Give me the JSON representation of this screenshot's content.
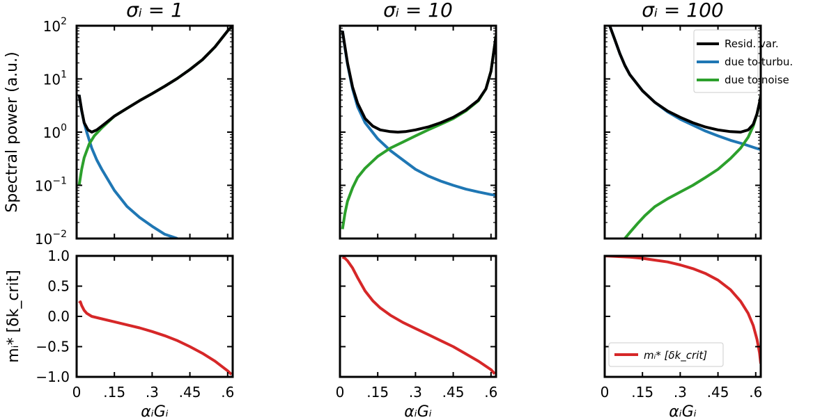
{
  "chart_data": {
    "type": "line",
    "layout": "2 rows x 3 columns, shared x axis",
    "x_range": [
      0,
      0.62
    ],
    "x_ticks": [
      0,
      0.15,
      0.3,
      0.45,
      0.6
    ],
    "x_tick_labels": [
      "0",
      ".15",
      ".3",
      ".45",
      ".6"
    ],
    "xlabel": "αᵢGᵢ",
    "top_row": {
      "ylabel": "Spectral power (a.u.)",
      "yscale": "log",
      "ylim": [
        0.01,
        100
      ],
      "y_ticks": [
        0.01,
        0.1,
        1,
        10,
        100
      ],
      "y_tick_labels": [
        {
          "base": "10",
          "exp": "−2"
        },
        {
          "base": "10",
          "exp": "−1"
        },
        {
          "base": "10",
          "exp": "0"
        },
        {
          "base": "10",
          "exp": "1"
        },
        {
          "base": "10",
          "exp": "2"
        }
      ]
    },
    "bottom_row": {
      "ylabel": "mᵢ* [δk_crit]",
      "ylim": [
        -1.0,
        1.0
      ],
      "y_ticks": [
        -1.0,
        -0.5,
        0.0,
        0.5,
        1.0
      ],
      "y_tick_labels": [
        "−1.0",
        "−0.5",
        "0.0",
        "0.5",
        "1.0"
      ]
    },
    "legend_top": {
      "placement": "top-right of third column top panel",
      "entries": [
        "Resid. var.",
        "due to turbu.",
        "due to noise"
      ]
    },
    "legend_bottom": {
      "placement": "lower-left of third column bottom panel",
      "entries": [
        "mᵢ* [δk_crit]"
      ]
    },
    "colors": {
      "resid": "#000000",
      "turbu": "#1f77b4",
      "noise": "#2ca02c",
      "m": "#d62728"
    },
    "panels": [
      {
        "title": "σᵢ = 1",
        "top": {
          "series": [
            {
              "name": "Resid. var.",
              "x": [
                0.01,
                0.02,
                0.03,
                0.045,
                0.06,
                0.08,
                0.1,
                0.15,
                0.2,
                0.25,
                0.3,
                0.35,
                0.4,
                0.45,
                0.5,
                0.55,
                0.6,
                0.62
              ],
              "y": [
                5.0,
                2.6,
                1.5,
                1.1,
                1.0,
                1.1,
                1.3,
                2.0,
                2.8,
                3.9,
                5.3,
                7.3,
                10.2,
                15,
                23,
                40,
                80,
                100
              ]
            },
            {
              "name": "due to turbu.",
              "x": [
                0.01,
                0.02,
                0.03,
                0.04,
                0.06,
                0.08,
                0.1,
                0.15,
                0.2,
                0.25,
                0.3,
                0.35,
                0.4
              ],
              "y": [
                5.0,
                2.5,
                1.5,
                1.0,
                0.5,
                0.3,
                0.2,
                0.08,
                0.04,
                0.025,
                0.017,
                0.012,
                0.01
              ]
            },
            {
              "name": "due to noise",
              "x": [
                0.01,
                0.02,
                0.03,
                0.05,
                0.07,
                0.1,
                0.15,
                0.2,
                0.25,
                0.3,
                0.35,
                0.4,
                0.45,
                0.5,
                0.55,
                0.6,
                0.62
              ],
              "y": [
                0.1,
                0.2,
                0.33,
                0.6,
                0.85,
                1.2,
                2.0,
                2.8,
                3.9,
                5.3,
                7.3,
                10.2,
                15,
                23,
                40,
                80,
                100
              ]
            }
          ]
        },
        "bottom": {
          "series": [
            {
              "name": "mᵢ* [δk_crit]",
              "x": [
                0.01,
                0.015,
                0.02,
                0.03,
                0.04,
                0.06,
                0.1,
                0.15,
                0.2,
                0.25,
                0.3,
                0.35,
                0.4,
                0.45,
                0.5,
                0.55,
                0.6,
                0.615
              ],
              "y": [
                0.22,
                0.24,
                0.18,
                0.1,
                0.05,
                0.0,
                -0.04,
                -0.09,
                -0.14,
                -0.19,
                -0.25,
                -0.32,
                -0.4,
                -0.5,
                -0.61,
                -0.74,
                -0.9,
                -0.96
              ]
            }
          ]
        }
      },
      {
        "title": "σᵢ = 10",
        "top": {
          "series": [
            {
              "name": "Resid. var.",
              "x": [
                0.01,
                0.02,
                0.03,
                0.05,
                0.07,
                0.1,
                0.13,
                0.16,
                0.2,
                0.23,
                0.26,
                0.3,
                0.35,
                0.4,
                0.45,
                0.5,
                0.55,
                0.58,
                0.6,
                0.62
              ],
              "y": [
                80,
                40,
                20,
                7,
                3.5,
                1.8,
                1.3,
                1.1,
                1.02,
                1.0,
                1.02,
                1.1,
                1.25,
                1.5,
                1.9,
                2.6,
                4.0,
                6.5,
                14,
                65
              ]
            },
            {
              "name": "due to turbu.",
              "x": [
                0.01,
                0.02,
                0.03,
                0.05,
                0.07,
                0.1,
                0.15,
                0.2,
                0.25,
                0.3,
                0.35,
                0.4,
                0.45,
                0.5,
                0.55,
                0.6,
                0.62
              ],
              "y": [
                80,
                38,
                19,
                6.5,
                3.0,
                1.5,
                0.75,
                0.45,
                0.3,
                0.2,
                0.15,
                0.12,
                0.1,
                0.085,
                0.075,
                0.067,
                0.065
              ]
            },
            {
              "name": "due to noise",
              "x": [
                0.01,
                0.02,
                0.03,
                0.05,
                0.07,
                0.1,
                0.15,
                0.2,
                0.25,
                0.3,
                0.35,
                0.4,
                0.45,
                0.5,
                0.55,
                0.58,
                0.6,
                0.62
              ],
              "y": [
                0.015,
                0.03,
                0.05,
                0.09,
                0.14,
                0.21,
                0.35,
                0.5,
                0.65,
                0.85,
                1.1,
                1.4,
                1.8,
                2.5,
                3.9,
                6.5,
                14,
                65
              ]
            }
          ]
        },
        "bottom": {
          "series": [
            {
              "name": "mᵢ* [δk_crit]",
              "x": [
                0.01,
                0.02,
                0.03,
                0.05,
                0.07,
                0.1,
                0.13,
                0.16,
                0.2,
                0.25,
                0.3,
                0.35,
                0.4,
                0.45,
                0.5,
                0.55,
                0.6,
                0.615
              ],
              "y": [
                0.98,
                0.96,
                0.92,
                0.8,
                0.64,
                0.42,
                0.26,
                0.14,
                0.02,
                -0.1,
                -0.2,
                -0.3,
                -0.4,
                -0.5,
                -0.62,
                -0.74,
                -0.88,
                -0.95
              ]
            }
          ]
        }
      },
      {
        "title": "σᵢ = 100",
        "top": {
          "series": [
            {
              "name": "Resid. var.",
              "x": [
                0.02,
                0.04,
                0.06,
                0.08,
                0.1,
                0.15,
                0.2,
                0.25,
                0.3,
                0.35,
                0.4,
                0.45,
                0.5,
                0.54,
                0.57,
                0.59,
                0.605,
                0.615,
                0.62
              ],
              "y": [
                100,
                55,
                30,
                18,
                12,
                6.0,
                3.6,
                2.5,
                1.9,
                1.5,
                1.25,
                1.1,
                1.02,
                1.0,
                1.1,
                1.4,
                2.2,
                3.6,
                4.8
              ]
            },
            {
              "name": "due to turbu.",
              "x": [
                0.02,
                0.04,
                0.06,
                0.08,
                0.1,
                0.15,
                0.2,
                0.25,
                0.3,
                0.35,
                0.4,
                0.45,
                0.5,
                0.55,
                0.6,
                0.62
              ],
              "y": [
                100,
                55,
                30,
                18,
                12,
                6.0,
                3.6,
                2.4,
                1.75,
                1.35,
                1.05,
                0.85,
                0.7,
                0.6,
                0.5,
                0.47
              ]
            },
            {
              "name": "due to noise",
              "x": [
                0.08,
                0.1,
                0.13,
                0.16,
                0.2,
                0.25,
                0.3,
                0.35,
                0.4,
                0.45,
                0.5,
                0.54,
                0.57,
                0.59,
                0.605,
                0.615,
                0.62
              ],
              "y": [
                0.01,
                0.013,
                0.019,
                0.027,
                0.04,
                0.056,
                0.075,
                0.1,
                0.14,
                0.2,
                0.32,
                0.5,
                0.8,
                1.3,
                2.2,
                3.5,
                4.8
              ]
            }
          ]
        },
        "bottom": {
          "series": [
            {
              "name": "mᵢ* [δk_crit]",
              "x": [
                0.0,
                0.05,
                0.1,
                0.15,
                0.2,
                0.25,
                0.3,
                0.35,
                0.4,
                0.45,
                0.5,
                0.54,
                0.57,
                0.59,
                0.605,
                0.615,
                0.62
              ],
              "y": [
                1.0,
                0.99,
                0.98,
                0.96,
                0.93,
                0.9,
                0.85,
                0.79,
                0.71,
                0.6,
                0.44,
                0.25,
                0.05,
                -0.15,
                -0.38,
                -0.6,
                -0.78
              ]
            }
          ]
        }
      }
    ]
  }
}
